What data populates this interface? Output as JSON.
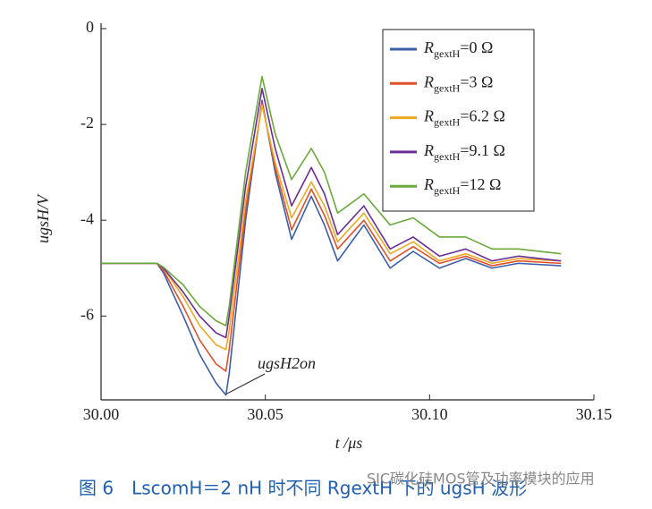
{
  "chart_data": {
    "type": "line",
    "x": [
      30.0,
      30.017,
      30.019,
      30.025,
      30.03,
      30.035,
      30.038,
      30.039,
      30.044,
      30.049,
      30.053,
      30.058,
      30.064,
      30.068,
      30.072,
      30.08,
      30.088,
      30.095,
      30.103,
      30.111,
      30.119,
      30.127,
      30.14
    ],
    "series": [
      {
        "name": "RgextH=0 Ω",
        "color": "#3a5fa8",
        "values": [
          -4.9,
          -4.9,
          -5.1,
          -6.0,
          -6.8,
          -7.4,
          -7.65,
          -7.2,
          -4.0,
          -1.5,
          -3.0,
          -4.4,
          -3.5,
          -4.1,
          -4.85,
          -4.1,
          -5.0,
          -4.65,
          -5.0,
          -4.8,
          -5.0,
          -4.9,
          -4.95
        ]
      },
      {
        "name": "RgextH=3 Ω",
        "color": "#e0502a",
        "values": [
          -4.9,
          -4.9,
          -5.05,
          -5.8,
          -6.5,
          -7.0,
          -7.15,
          -6.7,
          -3.8,
          -1.55,
          -2.9,
          -4.2,
          -3.35,
          -3.9,
          -4.6,
          -4.0,
          -4.85,
          -4.55,
          -4.9,
          -4.75,
          -4.95,
          -4.85,
          -4.9
        ]
      },
      {
        "name": "RgextH=6.2 Ω",
        "color": "#f0a820",
        "values": [
          -4.9,
          -4.9,
          -5.0,
          -5.6,
          -6.2,
          -6.6,
          -6.7,
          -6.3,
          -3.6,
          -1.6,
          -2.8,
          -3.95,
          -3.2,
          -3.7,
          -4.45,
          -3.85,
          -4.7,
          -4.45,
          -4.85,
          -4.7,
          -4.9,
          -4.8,
          -4.85
        ]
      },
      {
        "name": "RgextH=9.1 Ω",
        "color": "#6a2d96",
        "values": [
          -4.9,
          -4.9,
          -5.0,
          -5.5,
          -6.0,
          -6.35,
          -6.45,
          -6.0,
          -3.3,
          -1.25,
          -2.5,
          -3.7,
          -2.9,
          -3.45,
          -4.3,
          -3.7,
          -4.6,
          -4.35,
          -4.75,
          -4.6,
          -4.85,
          -4.75,
          -4.85
        ]
      },
      {
        "name": "RgextH=12 Ω",
        "color": "#6aaa3a",
        "values": [
          -4.9,
          -4.9,
          -4.98,
          -5.35,
          -5.8,
          -6.1,
          -6.2,
          -5.8,
          -3.0,
          -1.0,
          -2.2,
          -3.15,
          -2.5,
          -3.0,
          -3.85,
          -3.45,
          -4.1,
          -3.95,
          -4.35,
          -4.35,
          -4.6,
          -4.6,
          -4.7
        ]
      }
    ],
    "xlim": [
      30.0,
      30.15
    ],
    "xticks": [
      {
        "value": 30.0,
        "label": "30.00"
      },
      {
        "value": 30.05,
        "label": "30.05"
      },
      {
        "value": 30.1,
        "label": "30.10"
      },
      {
        "value": 30.15,
        "label": "30.15"
      }
    ],
    "ylim": [
      -7.75,
      0
    ],
    "yticks": [
      0,
      -2,
      -4,
      -6
    ],
    "xlabel": "t /μs",
    "ylabel": "ugsH/V",
    "annotation": "ugsH2on",
    "caption": "图 6　LscomH＝2 nH 时不同 RgextH 下的 ugsH 波形",
    "watermark": "SIC碳化硅MOS管及功率模块的应用",
    "legend": "upper right"
  }
}
